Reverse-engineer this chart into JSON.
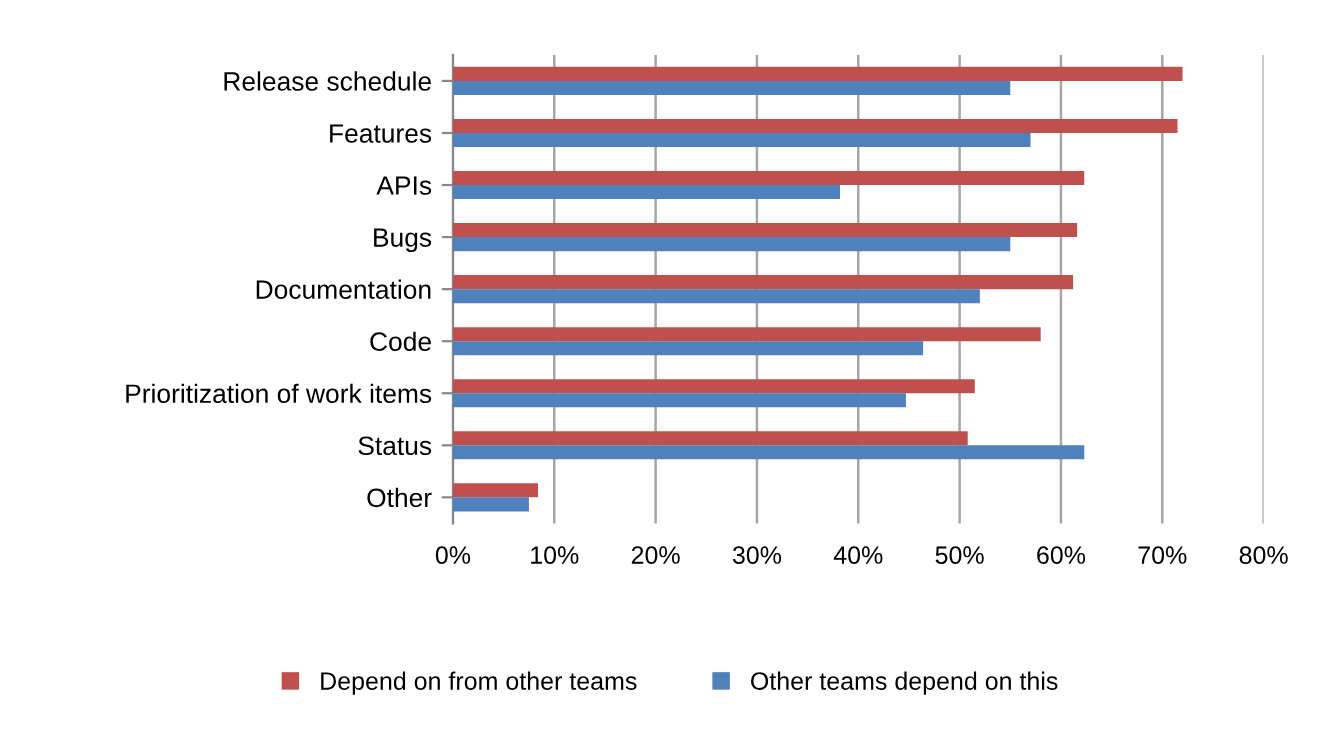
{
  "chart_data": {
    "type": "bar",
    "orientation": "horizontal",
    "categories": [
      "Release schedule",
      "Features",
      "APIs",
      "Bugs",
      "Documentation",
      "Code",
      "Prioritization of work items",
      "Status",
      "Other"
    ],
    "series": [
      {
        "name": "Depend on from other teams",
        "color": "#c0504d",
        "values": [
          72,
          71.5,
          62.3,
          61.6,
          61.2,
          58,
          51.5,
          50.8,
          8.4
        ]
      },
      {
        "name": "Other teams depend on this",
        "color": "#4f81bd",
        "values": [
          55,
          57,
          38.2,
          55,
          52,
          46.4,
          44.7,
          62.3,
          7.5
        ]
      }
    ],
    "xlim": [
      0,
      80
    ],
    "xticks": [
      {
        "value": 0,
        "label": "0%"
      },
      {
        "value": 10,
        "label": "10%"
      },
      {
        "value": 20,
        "label": "20%"
      },
      {
        "value": 30,
        "label": "30%"
      },
      {
        "value": 40,
        "label": "40%"
      },
      {
        "value": 50,
        "label": "50%"
      },
      {
        "value": 60,
        "label": "60%"
      },
      {
        "value": 70,
        "label": "70%"
      },
      {
        "value": 80,
        "label": "80%"
      }
    ],
    "grid": "x",
    "legend": "bottom"
  }
}
